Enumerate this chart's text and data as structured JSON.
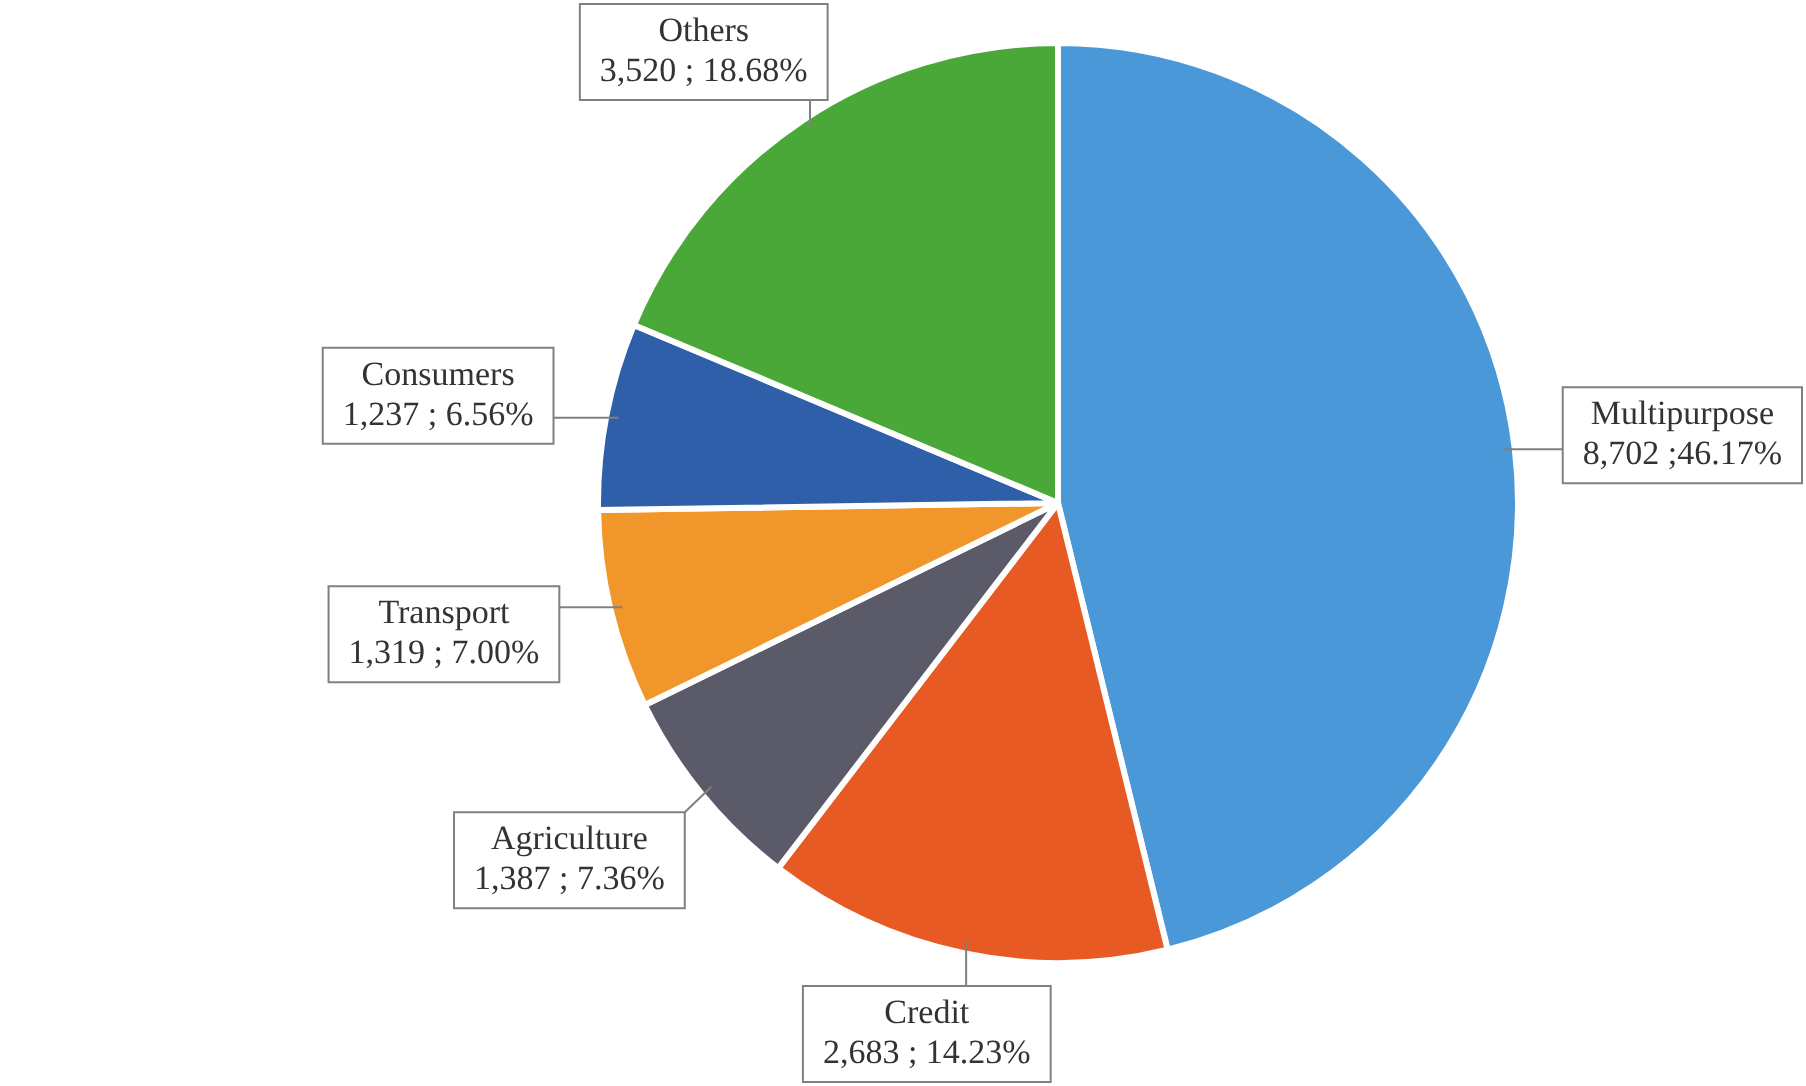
{
  "chart_data": {
    "type": "pie",
    "categories": [
      "Multipurpose",
      "Credit",
      "Agriculture",
      "Transport",
      "Consumers",
      "Others"
    ],
    "values": [
      8702,
      2683,
      1387,
      1319,
      1237,
      3520
    ],
    "colors": [
      "#4a98d8",
      "#e85a24",
      "#5a5a68",
      "#f0962a",
      "#2f5fa8",
      "#4aa838"
    ],
    "value_labels": [
      "8,702 ;46.17%",
      "2,683 ; 14.23%",
      "1,387 ; 7.36%",
      "1,319 ; 7.00%",
      "1,237 ; 6.56%",
      "3,520 ; 18.68%"
    ]
  }
}
